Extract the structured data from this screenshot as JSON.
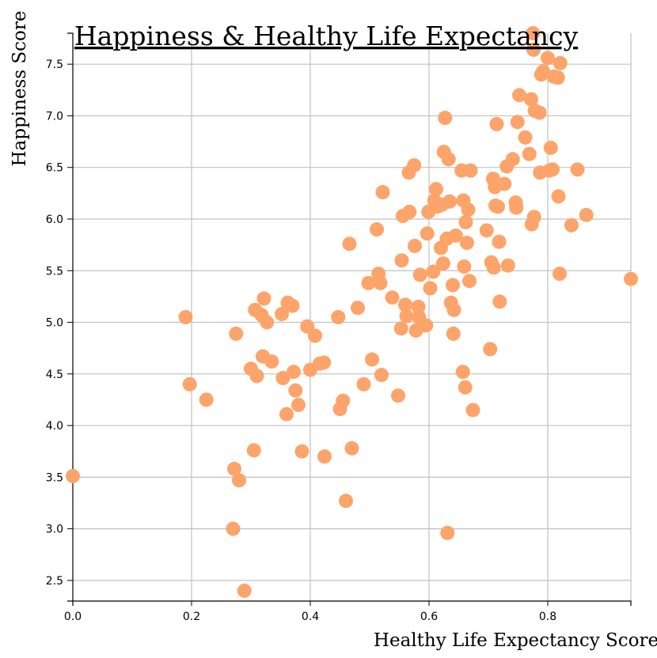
{
  "chart_data": {
    "type": "scatter",
    "title": "Happiness & Healthy Life Expectancy",
    "xlabel": "Healthy Life Expectancy Score",
    "ylabel": "Happiness Score",
    "xlim": [
      0,
      0.94
    ],
    "ylim": [
      2.3,
      7.8
    ],
    "xticks": [
      "0.0",
      "0.2",
      "0.4",
      "0.6",
      "0.8"
    ],
    "yticks": [
      "2.5",
      "3.0",
      "3.5",
      "4.0",
      "4.5",
      "5.0",
      "5.5",
      "6.0",
      "6.5",
      "7.0",
      "7.5"
    ],
    "grid": true,
    "point_color": "#fda46a",
    "points": [
      [
        0.0,
        3.51
      ],
      [
        0.19,
        5.05
      ],
      [
        0.197,
        4.4
      ],
      [
        0.225,
        4.25
      ],
      [
        0.27,
        3.0
      ],
      [
        0.272,
        3.58
      ],
      [
        0.275,
        4.89
      ],
      [
        0.28,
        3.47
      ],
      [
        0.289,
        2.4
      ],
      [
        0.3,
        4.55
      ],
      [
        0.305,
        3.76
      ],
      [
        0.307,
        5.12
      ],
      [
        0.31,
        4.48
      ],
      [
        0.318,
        5.07
      ],
      [
        0.32,
        4.67
      ],
      [
        0.322,
        5.23
      ],
      [
        0.327,
        5.0
      ],
      [
        0.335,
        4.62
      ],
      [
        0.352,
        5.08
      ],
      [
        0.354,
        4.46
      ],
      [
        0.36,
        4.11
      ],
      [
        0.362,
        5.19
      ],
      [
        0.37,
        5.16
      ],
      [
        0.372,
        4.52
      ],
      [
        0.375,
        4.34
      ],
      [
        0.38,
        4.2
      ],
      [
        0.386,
        3.75
      ],
      [
        0.395,
        4.96
      ],
      [
        0.4,
        4.54
      ],
      [
        0.408,
        4.87
      ],
      [
        0.416,
        4.6
      ],
      [
        0.423,
        4.61
      ],
      [
        0.424,
        3.7
      ],
      [
        0.447,
        5.05
      ],
      [
        0.45,
        4.16
      ],
      [
        0.455,
        4.24
      ],
      [
        0.46,
        3.27
      ],
      [
        0.466,
        5.76
      ],
      [
        0.47,
        3.78
      ],
      [
        0.48,
        5.14
      ],
      [
        0.49,
        4.4
      ],
      [
        0.498,
        5.38
      ],
      [
        0.504,
        4.64
      ],
      [
        0.512,
        5.9
      ],
      [
        0.515,
        5.47
      ],
      [
        0.518,
        5.38
      ],
      [
        0.52,
        4.49
      ],
      [
        0.522,
        6.26
      ],
      [
        0.538,
        5.24
      ],
      [
        0.548,
        4.29
      ],
      [
        0.553,
        4.94
      ],
      [
        0.554,
        5.6
      ],
      [
        0.556,
        6.03
      ],
      [
        0.56,
        5.17
      ],
      [
        0.562,
        5.06
      ],
      [
        0.566,
        6.45
      ],
      [
        0.567,
        6.07
      ],
      [
        0.575,
        6.52
      ],
      [
        0.576,
        5.74
      ],
      [
        0.578,
        4.92
      ],
      [
        0.582,
        5.15
      ],
      [
        0.583,
        5.05
      ],
      [
        0.585,
        5.46
      ],
      [
        0.595,
        4.97
      ],
      [
        0.597,
        5.86
      ],
      [
        0.599,
        6.07
      ],
      [
        0.602,
        5.33
      ],
      [
        0.607,
        5.49
      ],
      [
        0.609,
        6.18
      ],
      [
        0.612,
        6.29
      ],
      [
        0.614,
        6.12
      ],
      [
        0.62,
        5.72
      ],
      [
        0.622,
        6.14
      ],
      [
        0.624,
        5.57
      ],
      [
        0.625,
        6.65
      ],
      [
        0.627,
        6.98
      ],
      [
        0.63,
        5.81
      ],
      [
        0.631,
        2.96
      ],
      [
        0.633,
        6.58
      ],
      [
        0.635,
        6.17
      ],
      [
        0.637,
        5.19
      ],
      [
        0.64,
        5.36
      ],
      [
        0.641,
        4.89
      ],
      [
        0.642,
        5.12
      ],
      [
        0.645,
        5.84
      ],
      [
        0.655,
        6.47
      ],
      [
        0.657,
        4.52
      ],
      [
        0.658,
        6.18
      ],
      [
        0.659,
        5.54
      ],
      [
        0.661,
        4.37
      ],
      [
        0.662,
        5.97
      ],
      [
        0.664,
        5.77
      ],
      [
        0.666,
        6.09
      ],
      [
        0.668,
        5.4
      ],
      [
        0.67,
        6.47
      ],
      [
        0.674,
        4.15
      ],
      [
        0.697,
        5.89
      ],
      [
        0.703,
        4.74
      ],
      [
        0.705,
        5.58
      ],
      [
        0.708,
        6.39
      ],
      [
        0.709,
        5.53
      ],
      [
        0.711,
        6.31
      ],
      [
        0.712,
        6.13
      ],
      [
        0.714,
        6.92
      ],
      [
        0.716,
        6.12
      ],
      [
        0.718,
        5.78
      ],
      [
        0.719,
        5.2
      ],
      [
        0.727,
        6.34
      ],
      [
        0.731,
        6.51
      ],
      [
        0.733,
        5.55
      ],
      [
        0.741,
        6.58
      ],
      [
        0.746,
        6.16
      ],
      [
        0.747,
        6.11
      ],
      [
        0.749,
        6.94
      ],
      [
        0.752,
        7.2
      ],
      [
        0.762,
        6.79
      ],
      [
        0.769,
        6.63
      ],
      [
        0.772,
        7.16
      ],
      [
        0.773,
        5.95
      ],
      [
        0.775,
        7.8
      ],
      [
        0.776,
        7.64
      ],
      [
        0.777,
        6.02
      ],
      [
        0.778,
        7.05
      ],
      [
        0.786,
        7.03
      ],
      [
        0.787,
        6.45
      ],
      [
        0.789,
        7.4
      ],
      [
        0.792,
        7.43
      ],
      [
        0.8,
        7.56
      ],
      [
        0.803,
        6.47
      ],
      [
        0.805,
        6.69
      ],
      [
        0.808,
        6.48
      ],
      [
        0.81,
        7.38
      ],
      [
        0.817,
        7.37
      ],
      [
        0.818,
        6.22
      ],
      [
        0.82,
        5.47
      ],
      [
        0.821,
        7.51
      ],
      [
        0.84,
        5.94
      ],
      [
        0.85,
        6.48
      ],
      [
        0.865,
        6.04
      ],
      [
        0.94,
        5.42
      ]
    ]
  }
}
